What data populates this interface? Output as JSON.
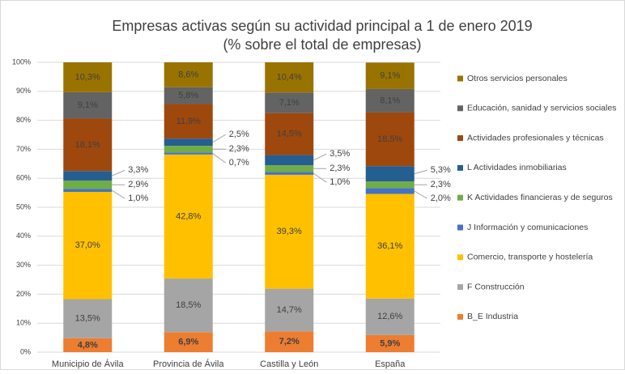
{
  "chart_data": {
    "type": "stacked_bar",
    "title": [
      "Empresas activas según su actividad principal a 1 de enero 2019",
      "(% sobre el total de empresas)"
    ],
    "categories": [
      "Municipio de Ávila",
      "Provincia de Ávila",
      "Castilla y León",
      "España"
    ],
    "series": [
      {
        "name": "B_E Industria",
        "color": "#ED7D31",
        "values": [
          4.8,
          6.9,
          7.2,
          5.9
        ],
        "value_labels": [
          "4,8%",
          "6,9%",
          "7,2%",
          "5,9%"
        ]
      },
      {
        "name": "F Construcción",
        "color": "#A5A5A5",
        "values": [
          13.5,
          18.5,
          14.7,
          12.6
        ],
        "value_labels": [
          "13,5%",
          "18,5%",
          "14,7%",
          "12,6%"
        ]
      },
      {
        "name": "Comercio, transporte y hostelería",
        "color": "#FFC000",
        "values": [
          37.0,
          42.8,
          39.3,
          36.1
        ],
        "value_labels": [
          "37,0%",
          "42,8%",
          "39,3%",
          "36,1%"
        ]
      },
      {
        "name": "J Información y comunicaciones",
        "color": "#4472C4",
        "values": [
          1.0,
          0.7,
          1.0,
          2.0
        ],
        "value_labels": [
          "1,0%",
          "0,7%",
          "1,0%",
          "2,0%"
        ]
      },
      {
        "name": "K Actividades financieras y de seguros",
        "color": "#70AD47",
        "values": [
          2.9,
          2.3,
          2.3,
          2.3
        ],
        "value_labels": [
          "2,9%",
          "2,3%",
          "2,3%",
          "2,3%"
        ]
      },
      {
        "name": "L Actividades inmobiliarias",
        "color": "#255E91",
        "values": [
          3.3,
          2.5,
          3.5,
          5.3
        ],
        "value_labels": [
          "3,3%",
          "2,5%",
          "3,5%",
          "5,3%"
        ]
      },
      {
        "name": "Actividades profesionales y técnicas",
        "color": "#9E480E",
        "values": [
          18.1,
          11.9,
          14.5,
          18.5
        ],
        "value_labels": [
          "18,1%",
          "11,9%",
          "14,5%",
          "18,5%"
        ]
      },
      {
        "name": "Educación, sanidad y servicios sociales",
        "color": "#636363",
        "values": [
          9.1,
          5.8,
          7.1,
          8.1
        ],
        "value_labels": [
          "9,1%",
          "5,8%",
          "7,1%",
          "8,1%"
        ]
      },
      {
        "name": "Otros servicios personales",
        "color": "#997300",
        "values": [
          10.3,
          8.6,
          10.4,
          9.1
        ],
        "value_labels": [
          "10,3%",
          "8,6%",
          "10,4%",
          "9,1%"
        ]
      }
    ],
    "ylim": [
      0,
      100
    ],
    "yticks": [
      {
        "value": 0,
        "label": "0%"
      },
      {
        "value": 10,
        "label": "10%"
      },
      {
        "value": 20,
        "label": "20%"
      },
      {
        "value": 30,
        "label": "30%"
      },
      {
        "value": 40,
        "label": "40%"
      },
      {
        "value": 50,
        "label": "50%"
      },
      {
        "value": 60,
        "label": "60%"
      },
      {
        "value": 70,
        "label": "70%"
      },
      {
        "value": 80,
        "label": "80%"
      },
      {
        "value": 90,
        "label": "90%"
      },
      {
        "value": 100,
        "label": "100%"
      }
    ],
    "grid": true,
    "legend": "right"
  }
}
